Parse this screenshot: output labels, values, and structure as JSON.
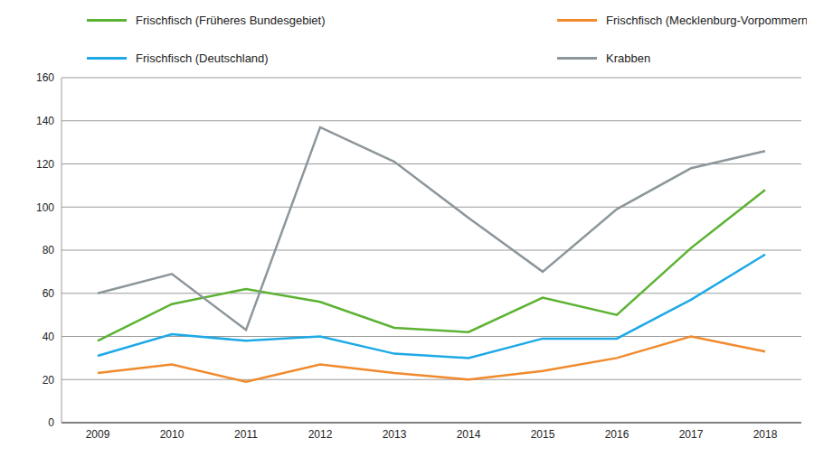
{
  "chart_data": {
    "type": "line",
    "categories": [
      "2009",
      "2010",
      "2011",
      "2012",
      "2013",
      "2014",
      "2015",
      "2016",
      "2017",
      "2018"
    ],
    "series": [
      {
        "name": "Frischfisch (Früheres Bundesgebiet)",
        "color": "#5cb233",
        "values": [
          38,
          55,
          62,
          56,
          44,
          42,
          58,
          50,
          81,
          108
        ]
      },
      {
        "name": "Frischfisch (Mecklenburg-Vorpommern)",
        "color": "#f08a2c",
        "values": [
          23,
          27,
          19,
          27,
          23,
          20,
          24,
          30,
          40,
          33
        ]
      },
      {
        "name": "Frischfisch (Deutschland)",
        "color": "#1ea9e6",
        "values": [
          31,
          41,
          38,
          40,
          32,
          30,
          39,
          39,
          57,
          78
        ]
      },
      {
        "name": "Krabben",
        "color": "#8c969b",
        "values": [
          60,
          69,
          43,
          137,
          121,
          95,
          70,
          99,
          118,
          126
        ]
      }
    ],
    "ylim": [
      0,
      160
    ],
    "yticks": [
      0,
      20,
      40,
      60,
      80,
      100,
      120,
      140,
      160
    ],
    "grid": true,
    "legend": "top"
  }
}
